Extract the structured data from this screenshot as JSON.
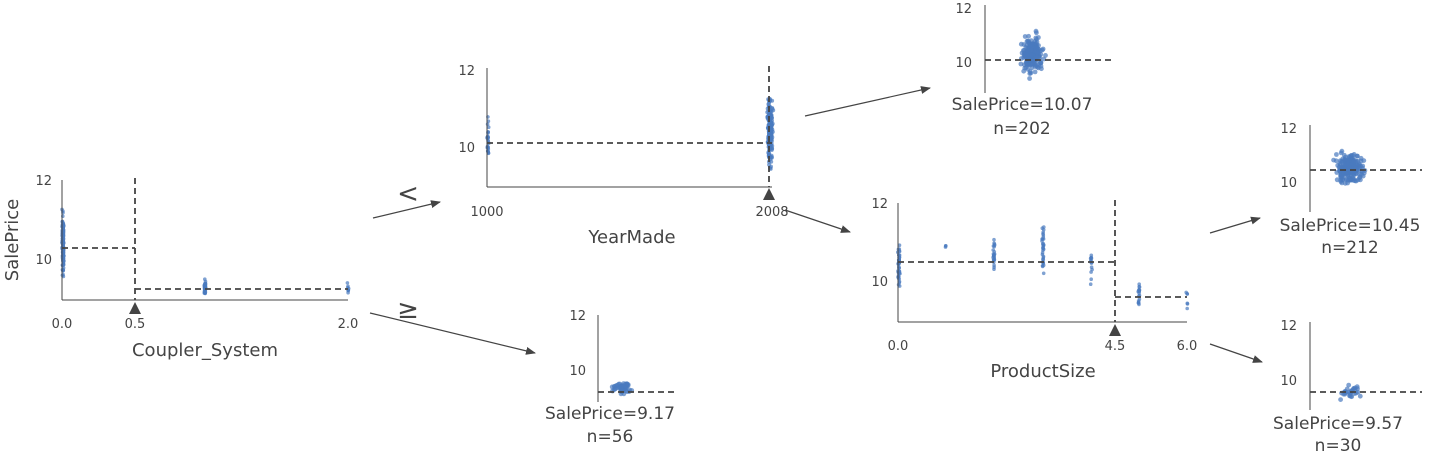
{
  "colors": {
    "points": "#4a7bbf",
    "ink": "#444444"
  },
  "nodes": {
    "root": {
      "ylabel": "SalePrice",
      "feature": "Coupler_System",
      "xticks": [
        "0.0",
        "0.5",
        "2.0"
      ],
      "yticks": [
        "10",
        "12"
      ],
      "split_value": 0.5,
      "left_mean": 10.2,
      "right_mean": 9.17
    },
    "yearmade": {
      "feature": "YearMade",
      "xticks": [
        "1000",
        "2008"
      ],
      "yticks": [
        "10",
        "12"
      ],
      "split_value": 2008,
      "mean": 10.07
    },
    "productsize": {
      "feature": "ProductSize",
      "xticks": [
        "0.0",
        "4.5",
        "6.0"
      ],
      "yticks": [
        "10",
        "12"
      ],
      "split_value": 4.5,
      "left_mean": 10.45,
      "right_mean": 9.57
    }
  },
  "edges": {
    "lt_label": "<",
    "ge_label": "≥"
  },
  "leaves": {
    "a": {
      "label": "SalePrice=9.17",
      "n_label": "n=56",
      "yticks": [
        "10",
        "12"
      ],
      "mean": 9.17
    },
    "b": {
      "label": "SalePrice=10.07",
      "n_label": "n=202",
      "yticks": [
        "10",
        "12"
      ],
      "mean": 10.07
    },
    "c": {
      "label": "SalePrice=10.45",
      "n_label": "n=212",
      "yticks": [
        "10",
        "12"
      ],
      "mean": 10.45
    },
    "d": {
      "label": "SalePrice=9.57",
      "n_label": "n=30",
      "yticks": [
        "10",
        "12"
      ],
      "mean": 9.57
    }
  }
}
